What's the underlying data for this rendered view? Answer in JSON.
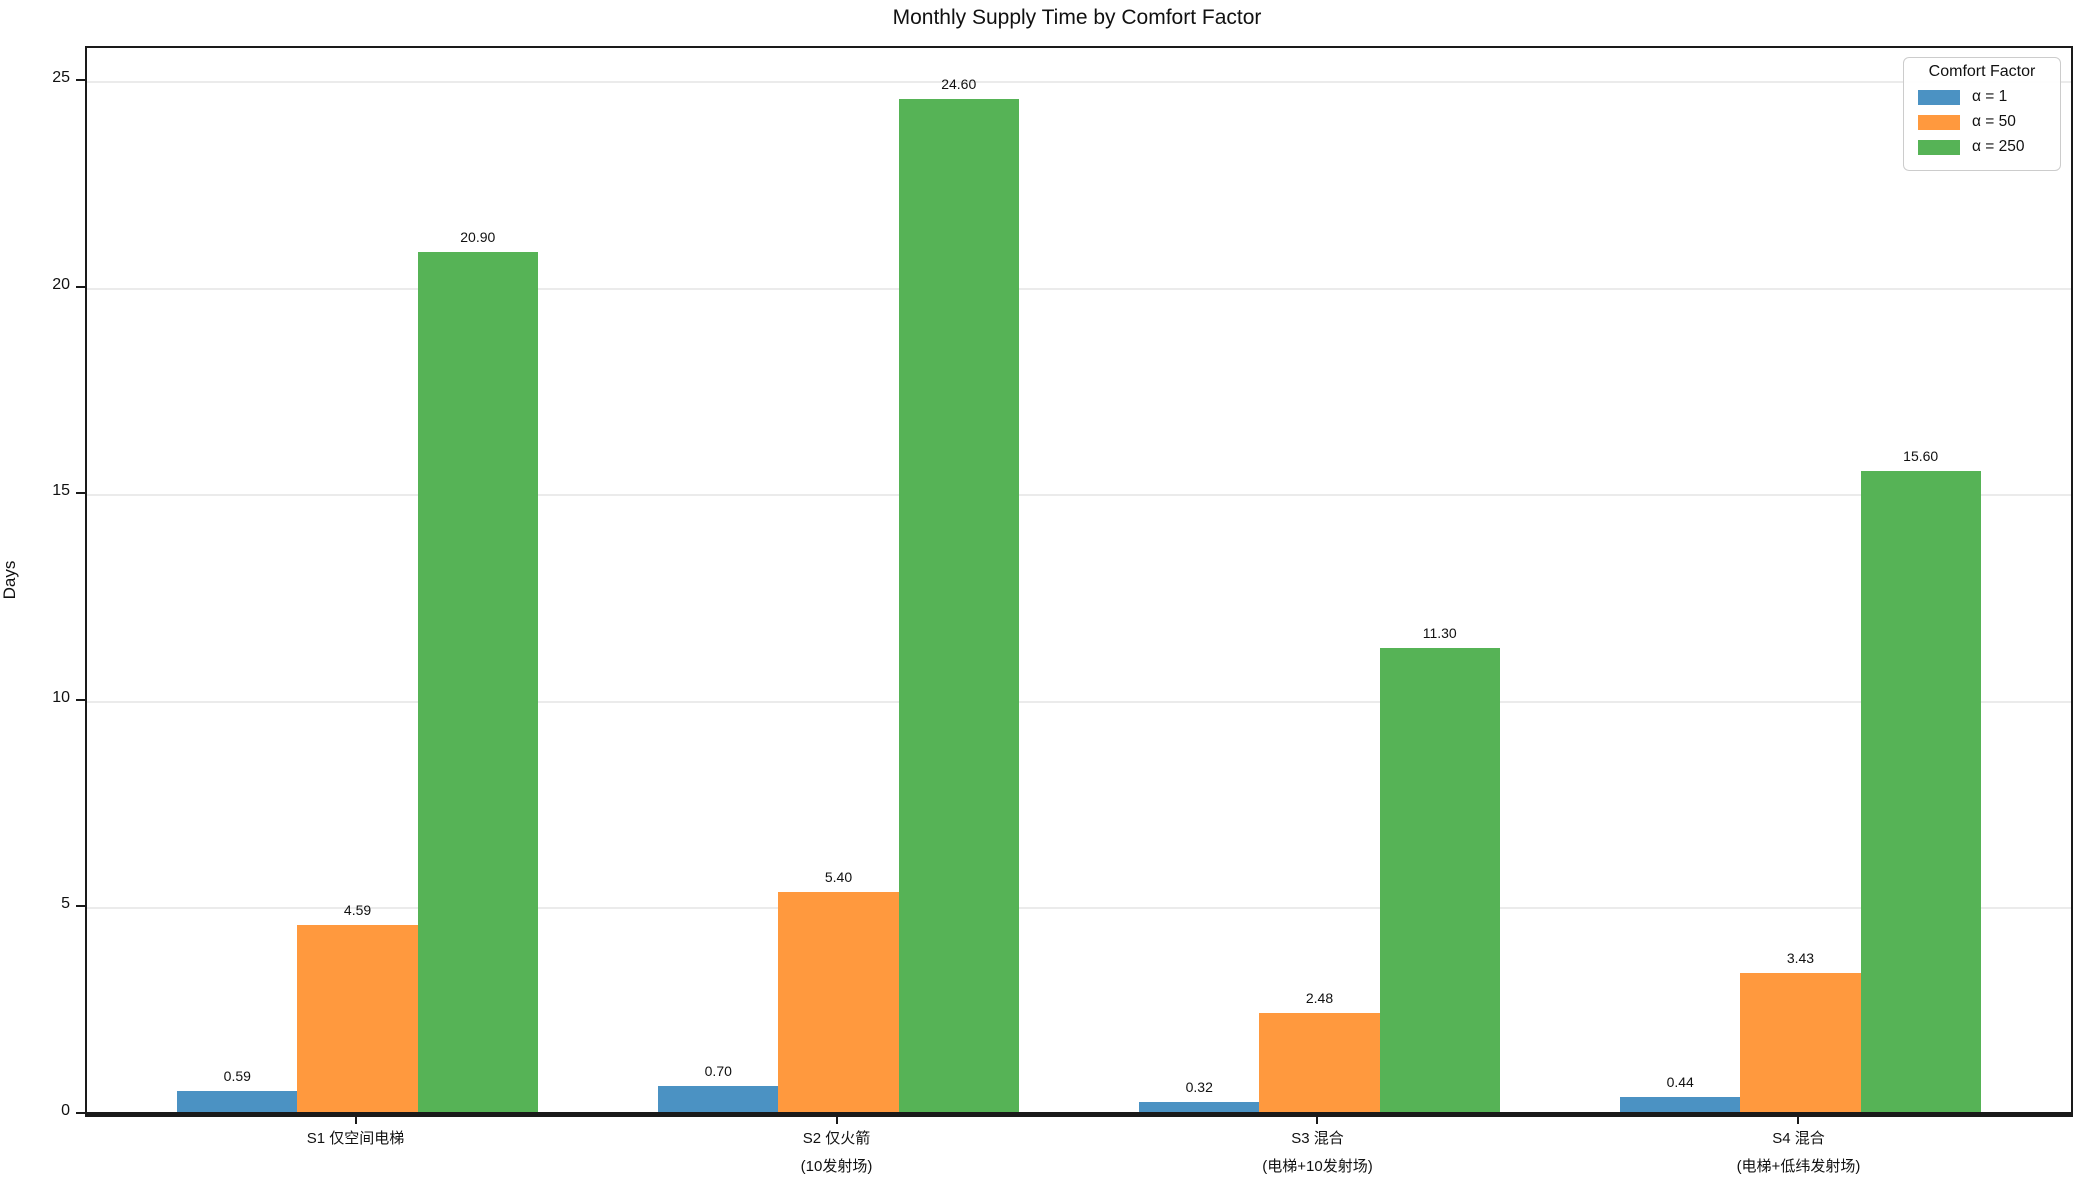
{
  "chart_data": {
    "type": "bar",
    "title": "Monthly Supply Time by Comfort Factor",
    "ylabel": "Days",
    "xlabel": "",
    "legend_title": "Comfort Factor",
    "legend_position": "upper right",
    "grid": "horizontal",
    "categories": [
      "S1 仅空间电梯",
      "S2 仅火箭\n(10发射场)",
      "S3 混合\n(电梯+10发射场)",
      "S4 混合\n(电梯+低纬发射场)"
    ],
    "series": [
      {
        "name": "α = 1",
        "color": "#4b92c3",
        "values": [
          0.59,
          0.7,
          0.32,
          0.44
        ],
        "labels": [
          "0.59",
          "0.70",
          "0.32",
          "0.44"
        ]
      },
      {
        "name": "α = 50",
        "color": "#ff993e",
        "values": [
          4.59,
          5.4,
          2.48,
          3.43
        ],
        "labels": [
          "4.59",
          "5.40",
          "2.48",
          "3.43"
        ]
      },
      {
        "name": "α = 250",
        "color": "#56b356",
        "values": [
          20.9,
          24.6,
          11.3,
          15.6
        ],
        "labels": [
          "20.90",
          "24.60",
          "11.30",
          "15.60"
        ]
      }
    ],
    "yticks": [
      0,
      5,
      10,
      15,
      20,
      25
    ],
    "ylim": [
      0,
      25.83
    ]
  }
}
